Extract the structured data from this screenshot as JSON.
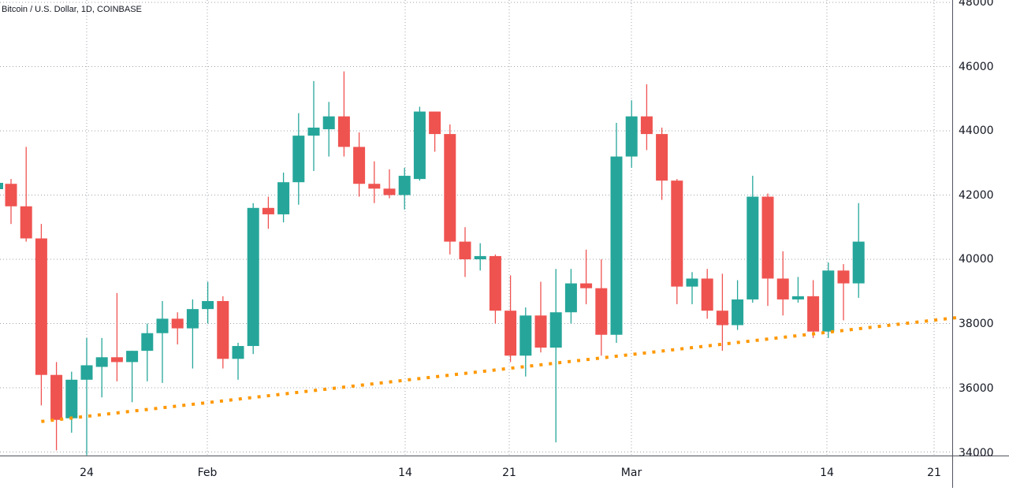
{
  "header": {
    "title": "Bitcoin / U.S. Dollar, 1D, COINBASE"
  },
  "colors": {
    "up": "#26a69a",
    "down": "#ef5350",
    "trendline": "#ff9800",
    "grid": "#a0a3ab",
    "axis": "#50535e",
    "text": "#131722"
  },
  "chart_data": {
    "type": "candlestick",
    "title": "Bitcoin / U.S. Dollar, 1D, COINBASE",
    "xlabel": "",
    "ylabel": "",
    "ylim": [
      34000,
      48000
    ],
    "y_ticks": [
      48000,
      46000,
      44000,
      42000,
      40000,
      38000,
      36000,
      34000
    ],
    "x_ticks": [
      "24",
      "Feb",
      "14",
      "21",
      "Mar",
      "14",
      "21"
    ],
    "grid": true,
    "candles": [
      {
        "date": "2022-01-19",
        "open": 42350,
        "high": 42500,
        "low": 41100,
        "close": 41650
      },
      {
        "date": "2022-01-20",
        "open": 41650,
        "high": 43500,
        "low": 40550,
        "close": 40650
      },
      {
        "date": "2022-01-21",
        "open": 40650,
        "high": 41100,
        "low": 35450,
        "close": 36400
      },
      {
        "date": "2022-01-22",
        "open": 36400,
        "high": 36800,
        "low": 34050,
        "close": 35000
      },
      {
        "date": "2022-01-23",
        "open": 35050,
        "high": 36500,
        "low": 34600,
        "close": 36250
      },
      {
        "date": "2022-01-24",
        "open": 36250,
        "high": 37550,
        "low": 33900,
        "close": 36700
      },
      {
        "date": "2022-01-25",
        "open": 36650,
        "high": 37550,
        "low": 35700,
        "close": 36950
      },
      {
        "date": "2022-01-26",
        "open": 36950,
        "high": 38950,
        "low": 36200,
        "close": 36800
      },
      {
        "date": "2022-01-27",
        "open": 36800,
        "high": 37150,
        "low": 35550,
        "close": 37150
      },
      {
        "date": "2022-01-28",
        "open": 37150,
        "high": 38000,
        "low": 36200,
        "close": 37700
      },
      {
        "date": "2022-01-29",
        "open": 37700,
        "high": 38700,
        "low": 36150,
        "close": 38150
      },
      {
        "date": "2022-01-30",
        "open": 38150,
        "high": 38350,
        "low": 37350,
        "close": 37850
      },
      {
        "date": "2022-01-31",
        "open": 37850,
        "high": 38750,
        "low": 36600,
        "close": 38450
      },
      {
        "date": "2022-02-01",
        "open": 38450,
        "high": 39300,
        "low": 38000,
        "close": 38700
      },
      {
        "date": "2022-02-02",
        "open": 38700,
        "high": 38850,
        "low": 36600,
        "close": 36900
      },
      {
        "date": "2022-02-03",
        "open": 36900,
        "high": 37400,
        "low": 36250,
        "close": 37300
      },
      {
        "date": "2022-02-04",
        "open": 37300,
        "high": 41750,
        "low": 37050,
        "close": 41600
      },
      {
        "date": "2022-02-05",
        "open": 41600,
        "high": 41950,
        "low": 40950,
        "close": 41400
      },
      {
        "date": "2022-02-06",
        "open": 41400,
        "high": 42700,
        "low": 41150,
        "close": 42400
      },
      {
        "date": "2022-02-07",
        "open": 42400,
        "high": 44550,
        "low": 41700,
        "close": 43850
      },
      {
        "date": "2022-02-08",
        "open": 43850,
        "high": 45550,
        "low": 42750,
        "close": 44100
      },
      {
        "date": "2022-02-09",
        "open": 44050,
        "high": 44900,
        "low": 43200,
        "close": 44450
      },
      {
        "date": "2022-02-10",
        "open": 44450,
        "high": 45850,
        "low": 43200,
        "close": 43500
      },
      {
        "date": "2022-02-11",
        "open": 43500,
        "high": 43950,
        "low": 41950,
        "close": 42350
      },
      {
        "date": "2022-02-12",
        "open": 42350,
        "high": 43050,
        "low": 41750,
        "close": 42200
      },
      {
        "date": "2022-02-13",
        "open": 42200,
        "high": 42800,
        "low": 41900,
        "close": 42000
      },
      {
        "date": "2022-02-14",
        "open": 42000,
        "high": 42850,
        "low": 41550,
        "close": 42600
      },
      {
        "date": "2022-02-15",
        "open": 42500,
        "high": 44750,
        "low": 42450,
        "close": 44600
      },
      {
        "date": "2022-02-16",
        "open": 44600,
        "high": 44600,
        "low": 43350,
        "close": 43900
      },
      {
        "date": "2022-02-17",
        "open": 43900,
        "high": 44200,
        "low": 40150,
        "close": 40550
      },
      {
        "date": "2022-02-18",
        "open": 40550,
        "high": 41000,
        "low": 39450,
        "close": 40000
      },
      {
        "date": "2022-02-19",
        "open": 40000,
        "high": 40500,
        "low": 39650,
        "close": 40100
      },
      {
        "date": "2022-02-20",
        "open": 40100,
        "high": 40150,
        "low": 38000,
        "close": 38400
      },
      {
        "date": "2022-02-21",
        "open": 38400,
        "high": 39500,
        "low": 36800,
        "close": 37000
      },
      {
        "date": "2022-02-22",
        "open": 37000,
        "high": 38500,
        "low": 36350,
        "close": 38250
      },
      {
        "date": "2022-02-23",
        "open": 38250,
        "high": 39300,
        "low": 37100,
        "close": 37250
      },
      {
        "date": "2022-02-24",
        "open": 37250,
        "high": 39700,
        "low": 34300,
        "close": 38350
      },
      {
        "date": "2022-02-25",
        "open": 38350,
        "high": 39700,
        "low": 38000,
        "close": 39250
      },
      {
        "date": "2022-02-26",
        "open": 39250,
        "high": 40300,
        "low": 38600,
        "close": 39100
      },
      {
        "date": "2022-02-27",
        "open": 39100,
        "high": 40000,
        "low": 37000,
        "close": 37650
      },
      {
        "date": "2022-02-28",
        "open": 37650,
        "high": 44250,
        "low": 37400,
        "close": 43200
      },
      {
        "date": "2022-03-01",
        "open": 43200,
        "high": 44950,
        "low": 42850,
        "close": 44450
      },
      {
        "date": "2022-03-02",
        "open": 44450,
        "high": 45450,
        "low": 43400,
        "close": 43900
      },
      {
        "date": "2022-03-03",
        "open": 43900,
        "high": 44100,
        "low": 41850,
        "close": 42450
      },
      {
        "date": "2022-03-04",
        "open": 42450,
        "high": 42500,
        "low": 38600,
        "close": 39150
      },
      {
        "date": "2022-03-05",
        "open": 39150,
        "high": 39600,
        "low": 38600,
        "close": 39400
      },
      {
        "date": "2022-03-06",
        "open": 39400,
        "high": 39700,
        "low": 38150,
        "close": 38400
      },
      {
        "date": "2022-03-07",
        "open": 38400,
        "high": 39550,
        "low": 37150,
        "close": 37950
      },
      {
        "date": "2022-03-08",
        "open": 37950,
        "high": 39350,
        "low": 37800,
        "close": 38750
      },
      {
        "date": "2022-03-09",
        "open": 38750,
        "high": 42600,
        "low": 38650,
        "close": 41950
      },
      {
        "date": "2022-03-10",
        "open": 41950,
        "high": 42050,
        "low": 38550,
        "close": 39400
      },
      {
        "date": "2022-03-11",
        "open": 39400,
        "high": 40250,
        "low": 38250,
        "close": 38750
      },
      {
        "date": "2022-03-12",
        "open": 38750,
        "high": 39450,
        "low": 38650,
        "close": 38850
      },
      {
        "date": "2022-03-13",
        "open": 38850,
        "high": 39350,
        "low": 37550,
        "close": 37750
      },
      {
        "date": "2022-03-14",
        "open": 37750,
        "high": 39900,
        "low": 37550,
        "close": 39650
      },
      {
        "date": "2022-03-15",
        "open": 39650,
        "high": 39850,
        "low": 38100,
        "close": 39250
      },
      {
        "date": "2022-03-16",
        "open": 39250,
        "high": 41750,
        "low": 38800,
        "close": 40550
      }
    ],
    "annotations": [
      {
        "type": "trendline",
        "style": "dotted",
        "color": "#ff9800",
        "from": {
          "date": "2022-01-21",
          "price": 34950
        },
        "to": {
          "date": "2022-03-22",
          "price": 38200
        }
      }
    ]
  },
  "axis": {
    "y_labels": [
      "48000",
      "46000",
      "44000",
      "42000",
      "40000",
      "38000",
      "36000",
      "34000"
    ],
    "x_labels": [
      "24",
      "Feb",
      "14",
      "21",
      "Mar",
      "14",
      "21"
    ]
  }
}
